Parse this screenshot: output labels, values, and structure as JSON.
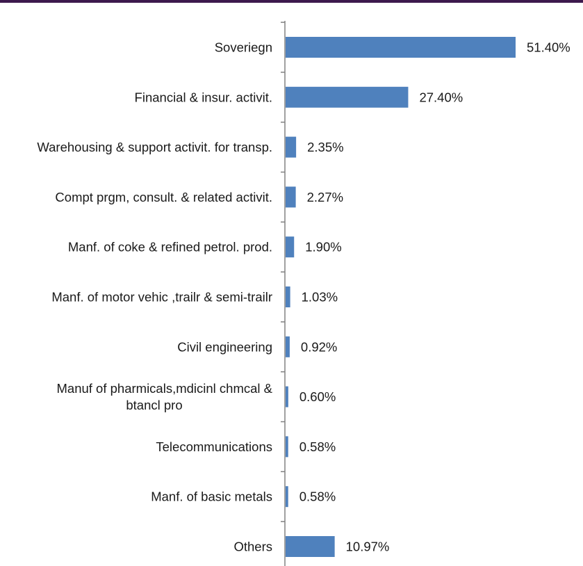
{
  "colors": {
    "top_bar": "#3d1a4d",
    "bar": "#4f81bd",
    "axis": "#808080"
  },
  "chart_data": {
    "type": "bar",
    "orientation": "horizontal",
    "categories": [
      [
        "Soveriegn"
      ],
      [
        "Financial & insur. activit."
      ],
      [
        "Warehousing & support activit. for transp."
      ],
      [
        "Compt prgm, consult. & related activit."
      ],
      [
        "Manf. of coke & refined petrol. prod."
      ],
      [
        "Manf. of motor vehic ,trailr & semi-trailr"
      ],
      [
        "Civil engineering"
      ],
      [
        "Manuf of pharmicals,mdicinl chmcal &",
        "btancl pro"
      ],
      [
        "Telecommunications"
      ],
      [
        "Manf. of basic metals"
      ],
      [
        "Others"
      ]
    ],
    "values": [
      51.4,
      27.4,
      2.35,
      2.27,
      1.9,
      1.03,
      0.92,
      0.6,
      0.58,
      0.58,
      10.97
    ],
    "value_labels": [
      "51.40%",
      "27.40%",
      "2.35%",
      "2.27%",
      "1.90%",
      "1.03%",
      "0.92%",
      "0.60%",
      "0.58%",
      "0.58%",
      "10.97%"
    ],
    "title": "",
    "xlabel": "",
    "ylabel": "",
    "grid": false,
    "legend": "none"
  }
}
